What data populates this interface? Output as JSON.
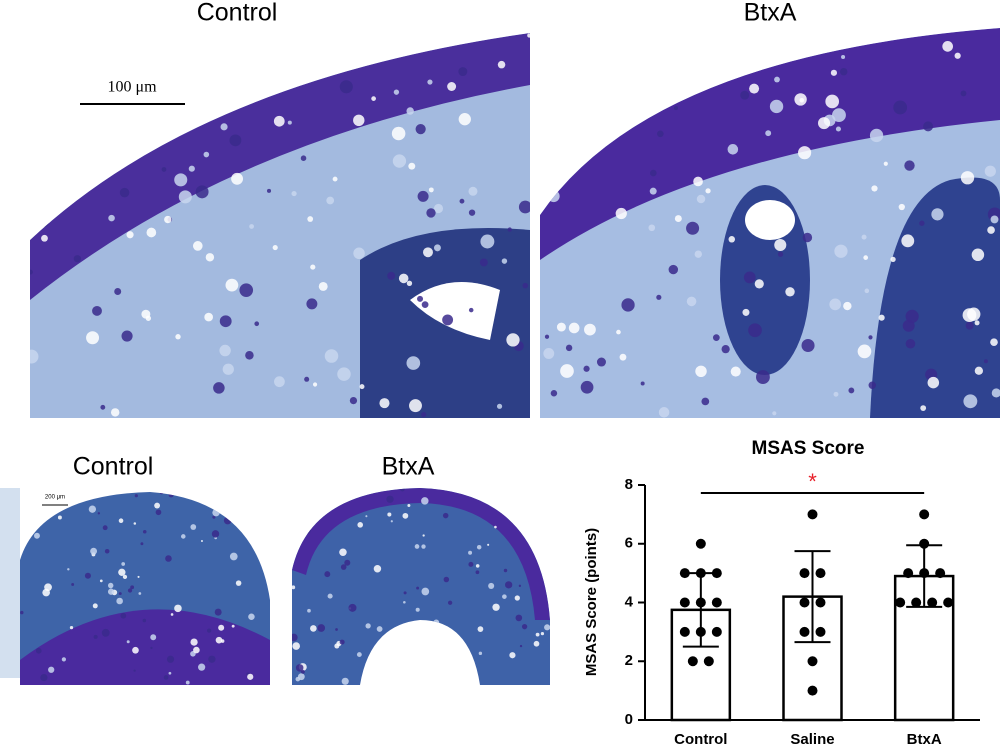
{
  "panels": {
    "top_left_label": "Control",
    "top_right_label": "BtxA",
    "scale_bar_top": "100 μm",
    "bottom_left_label": "Control",
    "bottom_right_label": "BtxA",
    "scale_bar_bottom": "200 μm"
  },
  "chart_data": {
    "type": "bar",
    "title": "MSAS Score",
    "y_label": "MSAS Score (points)",
    "categories": [
      "Control",
      "Saline",
      "BtxA"
    ],
    "values": [
      3.75,
      4.2,
      4.9
    ],
    "errors": [
      1.25,
      1.55,
      1.05
    ],
    "points": [
      [
        6,
        5,
        5,
        5,
        4,
        4,
        4,
        3,
        3,
        3,
        2,
        2
      ],
      [
        7,
        5,
        5,
        4,
        4,
        3,
        3,
        2,
        1
      ],
      [
        7,
        6,
        5,
        5,
        5,
        4,
        4,
        4,
        4
      ]
    ],
    "color": "#ffffff",
    "point_color": "#000000",
    "annotation": "*",
    "annotation_color": "#e8202a",
    "ylim": [
      0,
      8
    ],
    "yticks": [
      0,
      2,
      4,
      6,
      8
    ]
  }
}
